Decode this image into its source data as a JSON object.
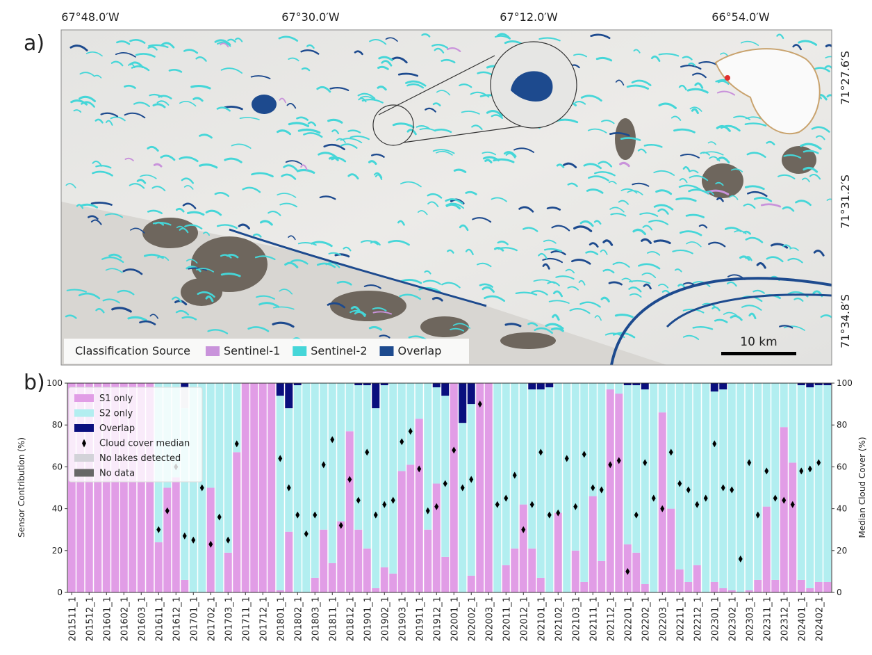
{
  "chart_data": [
    {
      "type": "map",
      "panel_label": "a)",
      "lon_labels": [
        "67°48.0′W",
        "67°30.0′W",
        "67°12.0′W",
        "66°54.0′W"
      ],
      "lat_labels": [
        "71°27.6′S",
        "71°31.2′S",
        "71°34.8′S"
      ],
      "legend_title": "Classification Source",
      "series": [
        {
          "name": "Sentinel-1",
          "color": "#c993db"
        },
        {
          "name": "Sentinel-2",
          "color": "#45d6d8"
        },
        {
          "name": "Overlap",
          "color": "#1d4a8e"
        }
      ],
      "scale_label": "10 km"
    },
    {
      "type": "stacked-bar",
      "panel_label": "b)",
      "ylabel": "Sensor Contribution (%)",
      "y2label": "Median Cloud Cover (%)",
      "ylim": [
        0,
        100
      ],
      "yticks": [
        0,
        20,
        40,
        60,
        80,
        100
      ],
      "y2lim": [
        0,
        100
      ],
      "y2ticks": [
        0,
        20,
        40,
        60,
        80,
        100
      ],
      "legend": "upper left",
      "categories": [
        "201511_1",
        null,
        "201512_1",
        null,
        "201601_1",
        null,
        "201602_1",
        null,
        "201603_1",
        null,
        "201611_1",
        null,
        "201612_1",
        null,
        "201701_1",
        null,
        "201702_1",
        null,
        "201703_1",
        null,
        "201711_1",
        null,
        "201712_1",
        null,
        "201801_1",
        null,
        "201802_1",
        null,
        "201803_1",
        null,
        "201811_1",
        null,
        "201812_1",
        null,
        "201901_1",
        null,
        "201902_1",
        null,
        "201903_1",
        null,
        "201911_1",
        null,
        "201912_1",
        null,
        "202001_1",
        null,
        "202002_1",
        null,
        "202003_1",
        null,
        "202011_1",
        null,
        "202012_1",
        null,
        "202101_1",
        null,
        "202102_1",
        null,
        "202103_1",
        null,
        "202111_1",
        null,
        "202112_1",
        null,
        "202201_1",
        null,
        "202202_1",
        null,
        "202203_1",
        null,
        "202211_1",
        null,
        "202212_1",
        null,
        "202301_1",
        null,
        "202302_1",
        null,
        "202303_1",
        null,
        "202311_1",
        null,
        "202312_1",
        null,
        "202401_1",
        null,
        "202402_1",
        null
      ],
      "series": [
        {
          "name": "S1 only",
          "color": "#e19de6",
          "values": [
            100,
            100,
            100,
            100,
            100,
            100,
            100,
            100,
            100,
            100,
            24,
            50,
            55,
            6,
            0,
            0,
            50,
            0,
            19,
            67,
            100,
            100,
            100,
            100,
            1,
            29,
            0,
            0,
            7,
            30,
            14,
            34,
            77,
            30,
            21,
            2,
            12,
            9,
            58,
            61,
            83,
            30,
            52,
            17,
            100,
            0,
            8,
            100,
            100,
            0,
            13,
            21,
            42,
            21,
            7,
            0,
            38,
            0,
            20,
            5,
            46,
            15,
            97,
            95,
            23,
            19,
            4,
            0,
            86,
            40,
            11,
            5,
            13,
            0,
            5,
            2,
            1,
            0,
            1,
            6,
            41,
            6,
            79,
            62,
            6,
            2,
            5,
            5
          ]
        },
        {
          "name": "S2 only",
          "color": "#b2eef0",
          "values": [
            0,
            0,
            0,
            0,
            0,
            0,
            0,
            0,
            0,
            0,
            76,
            50,
            45,
            82,
            100,
            100,
            50,
            100,
            81,
            33,
            0,
            0,
            0,
            0,
            93,
            59,
            99,
            100,
            93,
            70,
            86,
            66,
            23,
            69,
            78,
            86,
            87,
            91,
            42,
            39,
            17,
            70,
            46,
            77,
            0,
            81,
            82,
            0,
            0,
            100,
            87,
            79,
            58,
            76,
            90,
            98,
            62,
            100,
            80,
            95,
            54,
            85,
            3,
            5,
            76,
            80,
            93,
            100,
            14,
            60,
            89,
            95,
            87,
            100,
            91,
            95,
            99,
            100,
            99,
            94,
            59,
            94,
            21,
            38,
            93,
            96,
            94,
            94
          ]
        },
        {
          "name": "Overlap",
          "color": "#0a0f7e",
          "values": [
            0,
            0,
            0,
            0,
            0,
            0,
            0,
            0,
            0,
            0,
            0,
            0,
            0,
            2,
            0,
            0,
            0,
            0,
            0,
            0,
            0,
            0,
            0,
            0,
            6,
            12,
            1,
            0,
            0,
            0,
            0,
            0,
            0,
            1,
            1,
            12,
            1,
            0,
            0,
            0,
            0,
            0,
            2,
            6,
            0,
            19,
            10,
            0,
            0,
            0,
            0,
            0,
            0,
            3,
            3,
            2,
            0,
            0,
            0,
            0,
            0,
            0,
            0,
            0,
            1,
            1,
            3,
            0,
            0,
            0,
            0,
            0,
            0,
            0,
            4,
            3,
            0,
            0,
            0,
            0,
            0,
            0,
            0,
            0,
            1,
            2,
            1,
            1
          ]
        },
        {
          "name": "Cloud cover median",
          "type": "scatter",
          "marker": "diamond",
          "axis": "y2",
          "color": "#000000",
          "values": [
            null,
            null,
            null,
            null,
            null,
            null,
            null,
            null,
            null,
            null,
            30,
            39,
            60,
            27,
            25,
            50,
            23,
            36,
            25,
            71,
            null,
            null,
            null,
            null,
            64,
            50,
            37,
            28,
            37,
            61,
            73,
            32,
            54,
            44,
            67,
            37,
            42,
            44,
            72,
            77,
            59,
            39,
            41,
            52,
            68,
            50,
            54,
            90,
            null,
            42,
            45,
            56,
            30,
            42,
            67,
            37,
            38,
            64,
            41,
            66,
            50,
            49,
            61,
            63,
            10,
            37,
            62,
            45,
            40,
            67,
            52,
            49,
            42,
            45,
            71,
            50,
            49,
            16,
            62,
            37,
            58,
            45,
            44,
            42,
            58,
            59,
            62,
            null
          ]
        },
        {
          "name": "No lakes detected",
          "color": "#d3d3d9",
          "values": [
            0,
            0,
            0,
            0,
            0,
            0,
            0,
            0,
            0,
            0,
            0,
            0,
            0,
            10,
            0,
            0,
            0,
            0,
            0,
            0,
            0,
            0,
            0,
            0,
            0,
            0,
            0,
            0,
            0,
            0,
            0,
            0,
            0,
            0,
            0,
            0,
            0,
            0,
            0,
            0,
            0,
            0,
            0,
            0,
            0,
            0,
            0,
            0,
            0,
            0,
            0,
            0,
            0,
            0,
            0,
            0,
            0,
            0,
            0,
            0,
            0,
            0,
            0,
            0,
            0,
            0,
            0,
            0,
            0,
            0,
            0,
            0,
            0,
            0,
            0,
            0,
            0,
            0,
            0,
            0,
            0,
            0,
            0,
            0,
            0,
            0,
            0,
            0
          ]
        },
        {
          "name": "No data",
          "color": "#676767",
          "values": [
            0,
            0,
            0,
            0,
            0,
            0,
            0,
            0,
            0,
            0,
            0,
            0,
            0,
            0,
            0,
            0,
            0,
            0,
            0,
            0,
            0,
            0,
            0,
            0,
            0,
            0,
            0,
            0,
            0,
            0,
            0,
            0,
            0,
            0,
            0,
            0,
            0,
            0,
            0,
            0,
            0,
            0,
            0,
            0,
            0,
            0,
            0,
            0,
            0,
            0,
            0,
            0,
            0,
            0,
            0,
            0,
            0,
            0,
            0,
            0,
            0,
            0,
            0,
            0,
            0,
            0,
            0,
            0,
            0,
            0,
            0,
            0,
            0,
            0,
            0,
            0,
            0,
            0,
            0,
            0,
            0,
            0,
            0,
            0,
            0,
            0,
            0,
            0
          ]
        }
      ]
    }
  ]
}
